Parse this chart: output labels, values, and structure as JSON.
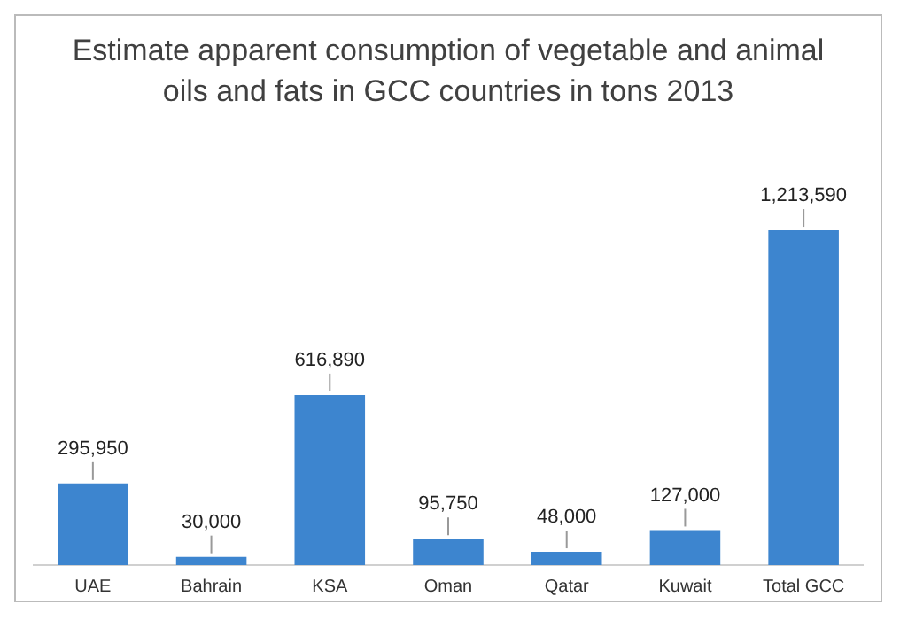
{
  "chart_data": {
    "type": "bar",
    "title": "Estimate apparent consumption of vegetable and animal oils and fats in GCC countries in tons 2013",
    "categories": [
      "UAE",
      "Bahrain",
      "KSA",
      "Oman",
      "Qatar",
      "Kuwait",
      "Total GCC"
    ],
    "values": [
      295950,
      30000,
      616890,
      95750,
      48000,
      127000,
      1213590
    ],
    "value_labels": [
      "295,950",
      "30,000",
      "616,890",
      "95,750",
      "48,000",
      "127,000",
      "1,213,590"
    ],
    "color": "#3d85cf",
    "grid": false
  }
}
